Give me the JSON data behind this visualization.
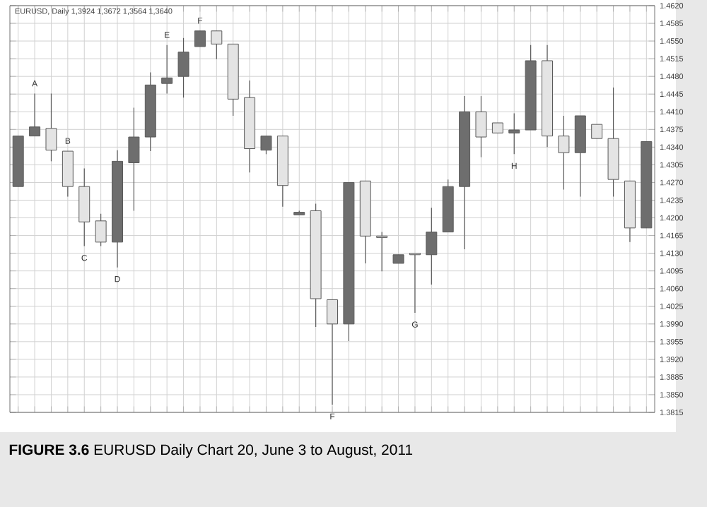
{
  "chart_data": {
    "type": "candlestick",
    "title": "EURUSD, Daily 1,3924 1,3672 1,3564 1,3640",
    "categories": [
      null,
      null,
      null,
      null,
      null,
      null,
      null,
      null,
      null,
      null,
      null,
      null,
      null,
      null,
      null,
      null,
      null,
      null,
      null,
      null,
      null,
      null,
      null,
      null,
      null,
      null,
      null,
      null,
      null,
      null,
      null,
      null,
      null,
      null,
      null,
      null,
      null,
      null,
      null
    ],
    "ohlc": [
      [
        1.4262,
        1.4362,
        1.4262,
        1.4362
      ],
      [
        1.4362,
        1.4446,
        1.4362,
        1.438
      ],
      [
        1.4377,
        1.4446,
        1.4312,
        1.4334
      ],
      [
        1.4332,
        1.4332,
        1.4242,
        1.4262
      ],
      [
        1.4262,
        1.4298,
        1.4144,
        1.4192
      ],
      [
        1.4194,
        1.4208,
        1.4144,
        1.4152
      ],
      [
        1.4152,
        1.4334,
        1.4102,
        1.4312
      ],
      [
        1.4309,
        1.4418,
        1.4214,
        1.436
      ],
      [
        1.436,
        1.4488,
        1.4332,
        1.4463
      ],
      [
        1.4466,
        1.4542,
        1.4446,
        1.4477
      ],
      [
        1.448,
        1.4556,
        1.4438,
        1.4528
      ],
      [
        1.4539,
        1.457,
        1.4539,
        1.457
      ],
      [
        1.457,
        1.457,
        1.4514,
        1.4544
      ],
      [
        1.4544,
        1.4544,
        1.4402,
        1.4435
      ],
      [
        1.4438,
        1.4472,
        1.429,
        1.4337
      ],
      [
        1.4334,
        1.4362,
        1.4326,
        1.4362
      ],
      [
        1.4362,
        1.4362,
        1.4222,
        1.4264
      ],
      [
        1.4206,
        1.4214,
        1.4206,
        1.4211
      ],
      [
        1.4214,
        1.4228,
        1.3984,
        1.404
      ],
      [
        1.4038,
        1.4038,
        1.383,
        1.399
      ],
      [
        1.399,
        1.427,
        1.3956,
        1.427
      ],
      [
        1.4273,
        1.4273,
        1.411,
        1.4164
      ],
      [
        1.4164,
        1.4172,
        1.4094,
        1.4161
      ],
      [
        1.411,
        1.4127,
        1.411,
        1.4127
      ],
      [
        1.413,
        1.413,
        1.4012,
        1.4127
      ],
      [
        1.4127,
        1.422,
        1.4068,
        1.4172
      ],
      [
        1.4172,
        1.4276,
        1.4172,
        1.4262
      ],
      [
        1.4262,
        1.4441,
        1.4138,
        1.441
      ],
      [
        1.441,
        1.4441,
        1.432,
        1.436
      ],
      [
        1.4388,
        1.4388,
        1.4368,
        1.4368
      ],
      [
        1.4368,
        1.4407,
        1.4326,
        1.4374
      ],
      [
        1.4374,
        1.4542,
        1.4374,
        1.4511
      ],
      [
        1.4511,
        1.4542,
        1.434,
        1.4362
      ],
      [
        1.4362,
        1.4402,
        1.4256,
        1.4329
      ],
      [
        1.4329,
        1.4402,
        1.4242,
        1.4402
      ],
      [
        1.4385,
        1.4385,
        1.4357,
        1.4357
      ],
      [
        1.4357,
        1.4458,
        1.4242,
        1.4276
      ],
      [
        1.4273,
        1.4273,
        1.4152,
        1.418
      ],
      [
        1.418,
        1.4351,
        1.418,
        1.4351
      ]
    ],
    "colors": [
      "#6e6e6e",
      "#6e6e6e",
      "#e4e4e4",
      "#e4e4e4",
      "#e4e4e4",
      "#e4e4e4",
      "#6e6e6e",
      "#6e6e6e",
      "#6e6e6e",
      "#6e6e6e",
      "#6e6e6e",
      "#6e6e6e",
      "#e4e4e4",
      "#e4e4e4",
      "#e4e4e4",
      "#6e6e6e",
      "#e4e4e4",
      "#6e6e6e",
      "#e4e4e4",
      "#e4e4e4",
      "#6e6e6e",
      "#e4e4e4",
      "#e4e4e4",
      "#6e6e6e",
      "#e4e4e4",
      "#6e6e6e",
      "#6e6e6e",
      "#6e6e6e",
      "#e4e4e4",
      "#e4e4e4",
      "#6e6e6e",
      "#6e6e6e",
      "#e4e4e4",
      "#e4e4e4",
      "#6e6e6e",
      "#e4e4e4",
      "#e4e4e4",
      "#e4e4e4",
      "#6e6e6e"
    ],
    "ylim": [
      1.3815,
      1.462
    ],
    "yticks": [
      {
        "value": 1.462,
        "label": "1.4620"
      },
      {
        "value": 1.4585,
        "label": "1.4585"
      },
      {
        "value": 1.455,
        "label": "1.4550"
      },
      {
        "value": 1.4515,
        "label": "1.4515"
      },
      {
        "value": 1.448,
        "label": "1.4480"
      },
      {
        "value": 1.4445,
        "label": "1.4445"
      },
      {
        "value": 1.441,
        "label": "1.4410"
      },
      {
        "value": 1.4375,
        "label": "1.4375"
      },
      {
        "value": 1.434,
        "label": "1.4340"
      },
      {
        "value": 1.4305,
        "label": "1.4305"
      },
      {
        "value": 1.427,
        "label": "1.4270"
      },
      {
        "value": 1.4235,
        "label": "1.4235"
      },
      {
        "value": 1.42,
        "label": "1.4200"
      },
      {
        "value": 1.4165,
        "label": "1.4165"
      },
      {
        "value": 1.413,
        "label": "1.4130"
      },
      {
        "value": 1.4095,
        "label": "1.4095"
      },
      {
        "value": 1.406,
        "label": "1.4060"
      },
      {
        "value": 1.4025,
        "label": "1.4025"
      },
      {
        "value": 1.399,
        "label": "1.3990"
      },
      {
        "value": 1.3955,
        "label": "1.3955"
      },
      {
        "value": 1.392,
        "label": "1.3920"
      },
      {
        "value": 1.3885,
        "label": "1.3885"
      },
      {
        "value": 1.385,
        "label": "1.3850"
      },
      {
        "value": 1.3815,
        "label": "1.3815"
      }
    ],
    "grid": true,
    "tick_labels": "y",
    "annotations": [
      "**FIGURE 3.6** EURUSD Daily Chart 20, June 3 to August, 2011",
      "A",
      "B",
      "C",
      "D",
      "E",
      "F",
      "F",
      "G",
      "H"
    ]
  }
}
